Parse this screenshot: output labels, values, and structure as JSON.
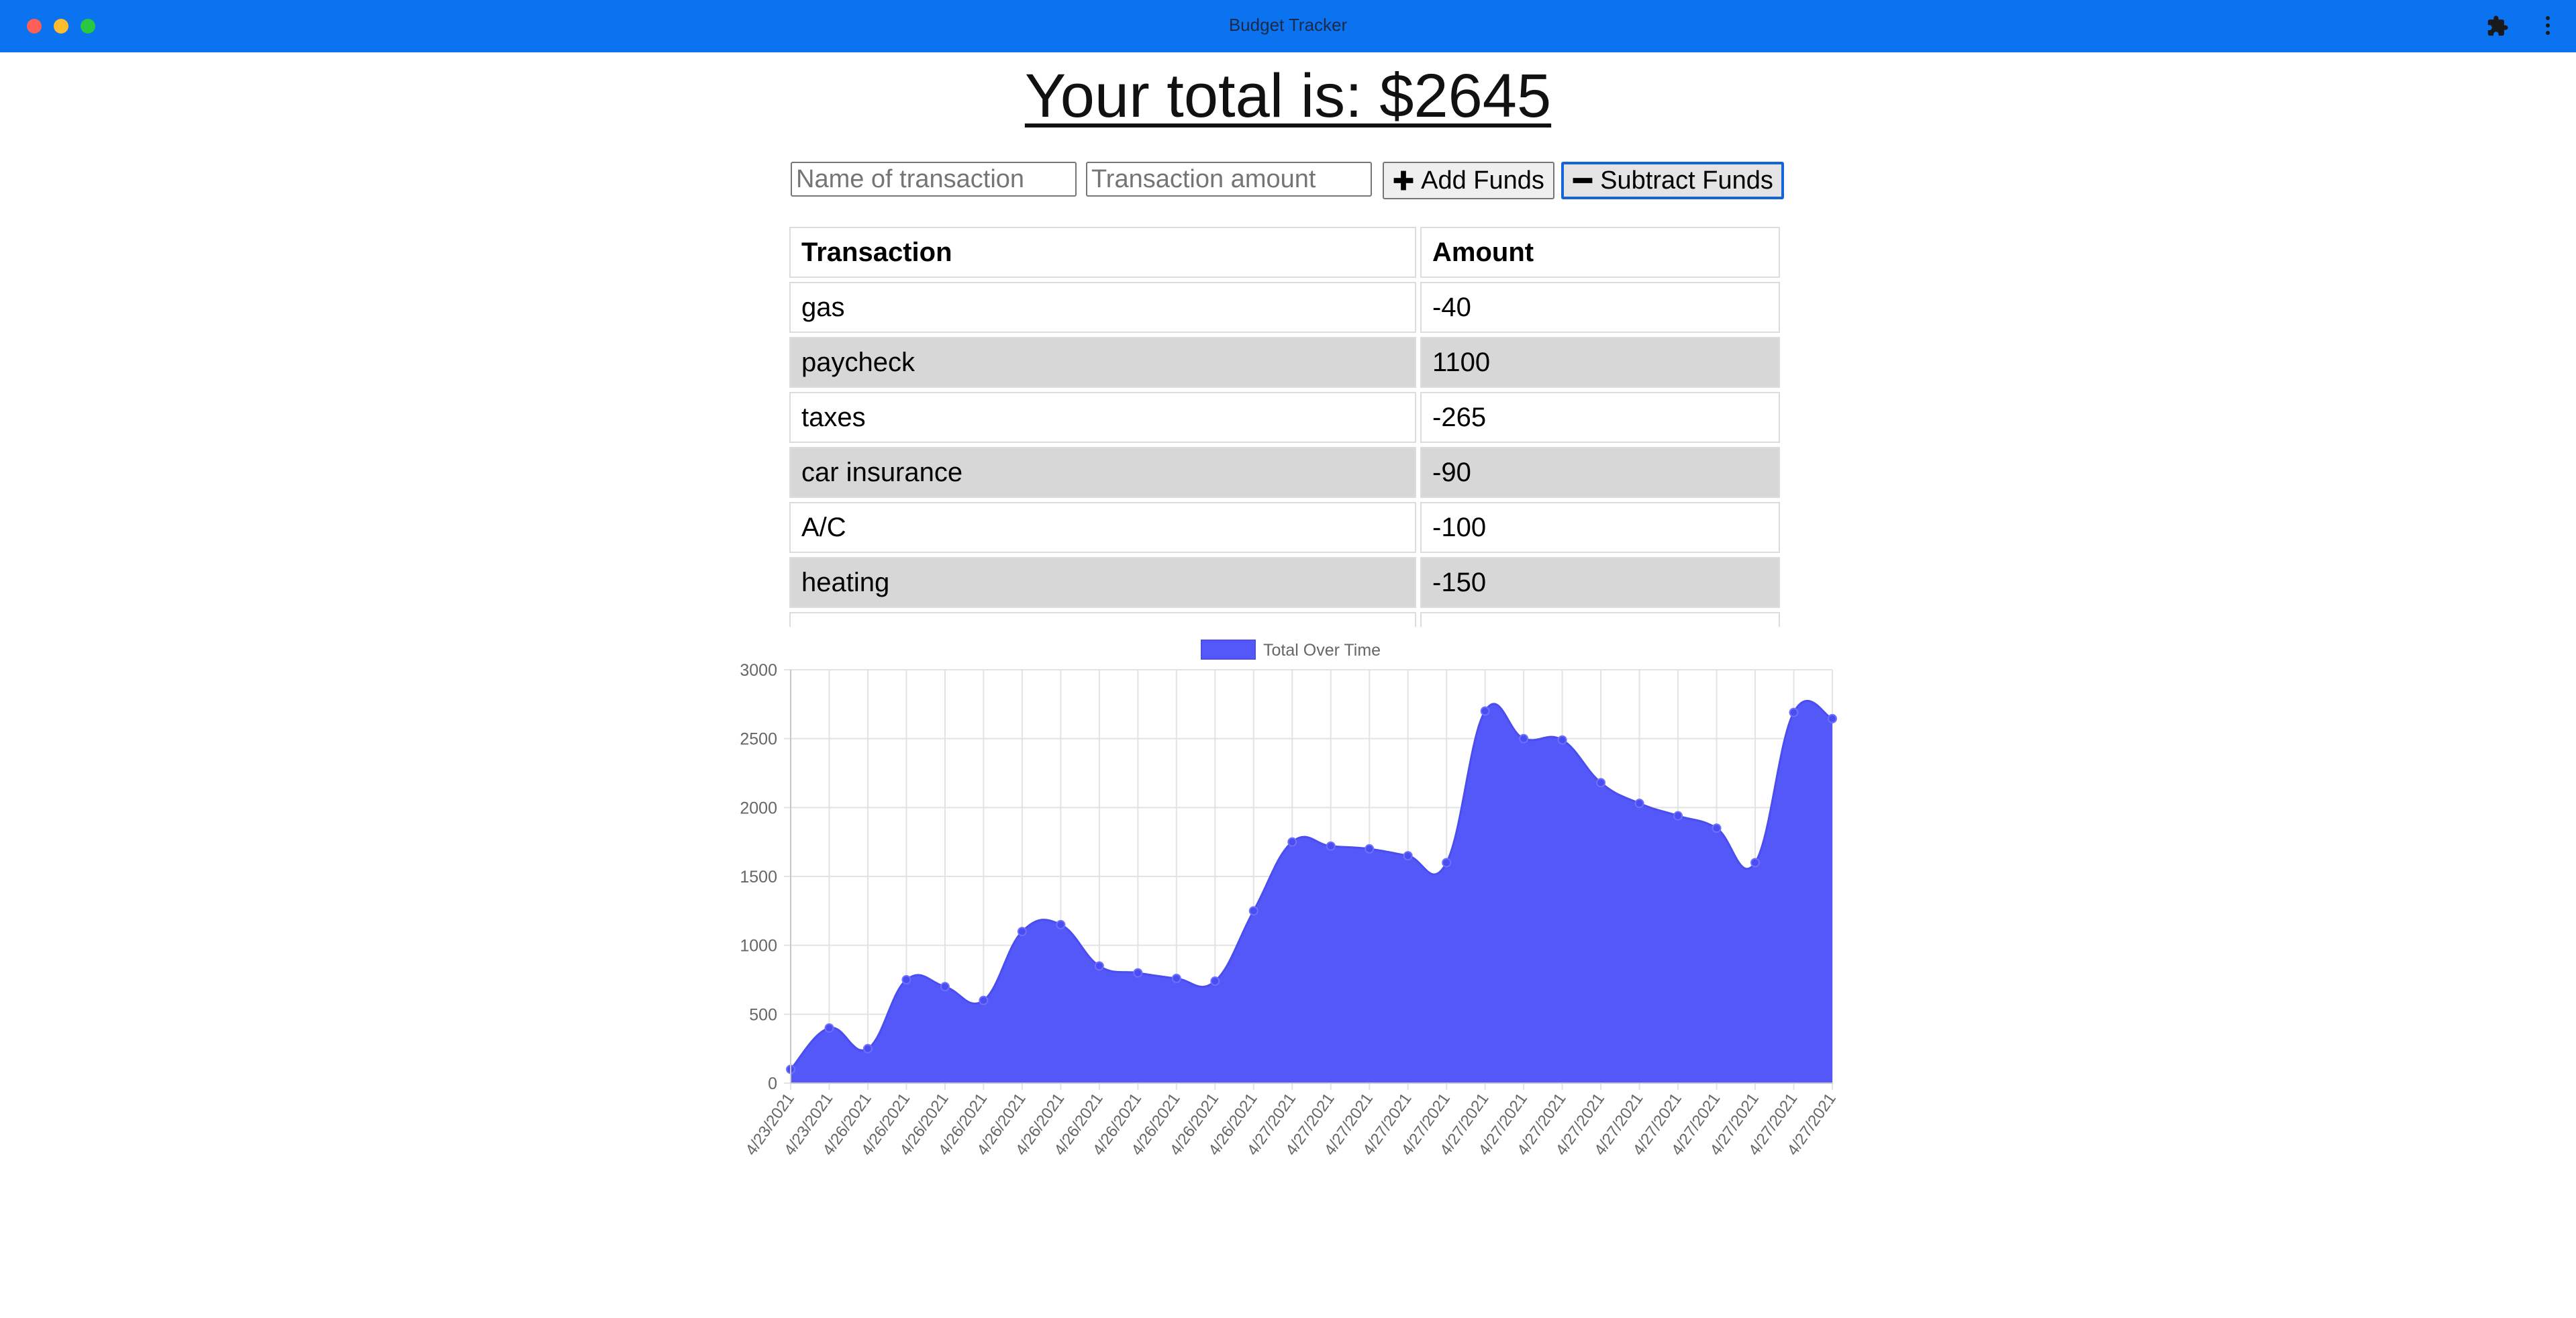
{
  "window": {
    "title": "Budget Tracker",
    "icons": [
      "puzzle-icon",
      "kebab-menu-icon"
    ]
  },
  "header": {
    "total_text": "Your total is: $2645"
  },
  "form": {
    "name_placeholder": "Name of transaction",
    "amount_placeholder": "Transaction amount",
    "add_label": "Add Funds",
    "subtract_label": "Subtract Funds",
    "add_icon": "plus-icon",
    "subtract_icon": "minus-icon"
  },
  "table": {
    "headers": [
      "Transaction",
      "Amount"
    ],
    "rows": [
      {
        "name": "gas",
        "amount": "-40"
      },
      {
        "name": "paycheck",
        "amount": "1100"
      },
      {
        "name": "taxes",
        "amount": "-265"
      },
      {
        "name": "car insurance",
        "amount": "-90"
      },
      {
        "name": "A/C",
        "amount": "-100"
      },
      {
        "name": "heating",
        "amount": "-150"
      }
    ]
  },
  "chart_data": {
    "type": "area",
    "legend": "Total Over Time",
    "legend_position": "top",
    "fill_color": "#5558f8",
    "grid": true,
    "ylim": [
      0,
      3000
    ],
    "yticks": [
      0,
      500,
      1000,
      1500,
      2000,
      2500,
      3000
    ],
    "x": [
      "4/23/2021",
      "4/23/2021",
      "4/26/2021",
      "4/26/2021",
      "4/26/2021",
      "4/26/2021",
      "4/26/2021",
      "4/26/2021",
      "4/26/2021",
      "4/26/2021",
      "4/26/2021",
      "4/26/2021",
      "4/26/2021",
      "4/27/2021",
      "4/27/2021",
      "4/27/2021",
      "4/27/2021",
      "4/27/2021",
      "4/27/2021",
      "4/27/2021",
      "4/27/2021",
      "4/27/2021",
      "4/27/2021",
      "4/27/2021",
      "4/27/2021",
      "4/27/2021",
      "4/27/2021",
      "4/27/2021"
    ],
    "values": [
      100,
      400,
      250,
      750,
      700,
      600,
      1100,
      1150,
      850,
      800,
      760,
      740,
      1250,
      1750,
      1720,
      1700,
      1650,
      1600,
      2700,
      2500,
      2490,
      2180,
      2030,
      1940,
      1850,
      1600,
      2690,
      2645
    ]
  }
}
